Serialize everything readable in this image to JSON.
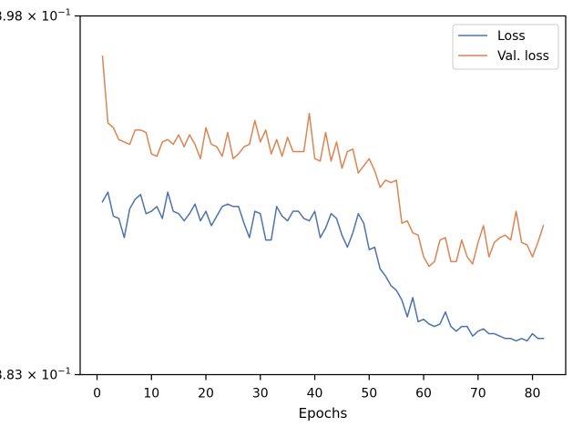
{
  "chart_data": {
    "type": "line",
    "title": "",
    "xlabel": "Epochs",
    "ylabel": "",
    "xlim": [
      -3.1,
      86.1
    ],
    "ylim": [
      0.883,
      0.898
    ],
    "y_scale": "log",
    "grid": false,
    "legend_position": "top-right",
    "x_ticks": [
      0,
      10,
      20,
      30,
      40,
      50,
      60,
      70,
      80
    ],
    "x_tick_labels": [
      "0",
      "10",
      "20",
      "30",
      "40",
      "50",
      "60",
      "70",
      "80"
    ],
    "y_tick_labels": [
      {
        "mantissa": "8.98",
        "base": "10",
        "exponent": "−1",
        "value": 0.898
      },
      {
        "mantissa": "8.83",
        "base": "10",
        "exponent": "−1",
        "value": 0.883
      }
    ],
    "x": [
      1,
      2,
      3,
      4,
      5,
      6,
      7,
      8,
      9,
      10,
      11,
      12,
      13,
      14,
      15,
      16,
      17,
      18,
      19,
      20,
      21,
      22,
      23,
      24,
      25,
      26,
      27,
      28,
      29,
      30,
      31,
      32,
      33,
      34,
      35,
      36,
      37,
      38,
      39,
      40,
      41,
      42,
      43,
      44,
      45,
      46,
      47,
      48,
      49,
      50,
      51,
      52,
      53,
      54,
      55,
      56,
      57,
      58,
      59,
      60,
      61,
      62,
      63,
      64,
      65,
      66,
      67,
      68,
      69,
      70,
      71,
      72,
      73,
      74,
      75,
      76,
      77,
      78,
      79,
      80,
      81,
      82
    ],
    "series": [
      {
        "name": "Loss",
        "color": "#4c72b0",
        "values": [
          0.8902,
          0.8906,
          0.8896,
          0.8895,
          0.8887,
          0.8899,
          0.8903,
          0.8905,
          0.8897,
          0.8898,
          0.89,
          0.8895,
          0.8906,
          0.8898,
          0.8897,
          0.8894,
          0.8897,
          0.8901,
          0.8894,
          0.8898,
          0.8892,
          0.8896,
          0.89,
          0.8901,
          0.89,
          0.89,
          0.8893,
          0.8887,
          0.8898,
          0.8897,
          0.8886,
          0.8886,
          0.89,
          0.8896,
          0.8894,
          0.8898,
          0.8898,
          0.8895,
          0.8894,
          0.8898,
          0.8887,
          0.8891,
          0.8897,
          0.8895,
          0.8888,
          0.8883,
          0.8889,
          0.8897,
          0.8893,
          0.8882,
          0.8883,
          0.8874,
          0.8871,
          0.8867,
          0.8865,
          0.8861,
          0.8854,
          0.8862,
          0.8852,
          0.8853,
          0.8851,
          0.885,
          0.8851,
          0.8856,
          0.885,
          0.8848,
          0.885,
          0.885,
          0.8846,
          0.8848,
          0.8849,
          0.8847,
          0.8847,
          0.8846,
          0.8845,
          0.8845,
          0.8844,
          0.8845,
          0.8844,
          0.8847,
          0.8845,
          0.8845
        ]
      },
      {
        "name": "Val. loss",
        "color": "#dd8452",
        "values": [
          0.8963,
          0.8935,
          0.8933,
          0.8928,
          0.8927,
          0.8926,
          0.8932,
          0.8932,
          0.8931,
          0.8922,
          0.8921,
          0.8927,
          0.8928,
          0.8926,
          0.893,
          0.8925,
          0.893,
          0.8926,
          0.892,
          0.8933,
          0.8926,
          0.8925,
          0.8921,
          0.8931,
          0.892,
          0.8922,
          0.8925,
          0.8926,
          0.8936,
          0.8927,
          0.8932,
          0.8922,
          0.8928,
          0.8921,
          0.8929,
          0.8923,
          0.8923,
          0.8923,
          0.8939,
          0.892,
          0.8919,
          0.8931,
          0.8919,
          0.8927,
          0.8916,
          0.8923,
          0.8924,
          0.8914,
          0.8917,
          0.892,
          0.8915,
          0.8908,
          0.8911,
          0.891,
          0.8911,
          0.8893,
          0.8894,
          0.8889,
          0.8888,
          0.8879,
          0.8875,
          0.8877,
          0.8886,
          0.8887,
          0.8877,
          0.8877,
          0.8886,
          0.8879,
          0.8876,
          0.8885,
          0.8892,
          0.8879,
          0.8885,
          0.8887,
          0.8888,
          0.8886,
          0.8898,
          0.8885,
          0.8884,
          0.8879,
          0.8885,
          0.8892
        ]
      }
    ]
  }
}
